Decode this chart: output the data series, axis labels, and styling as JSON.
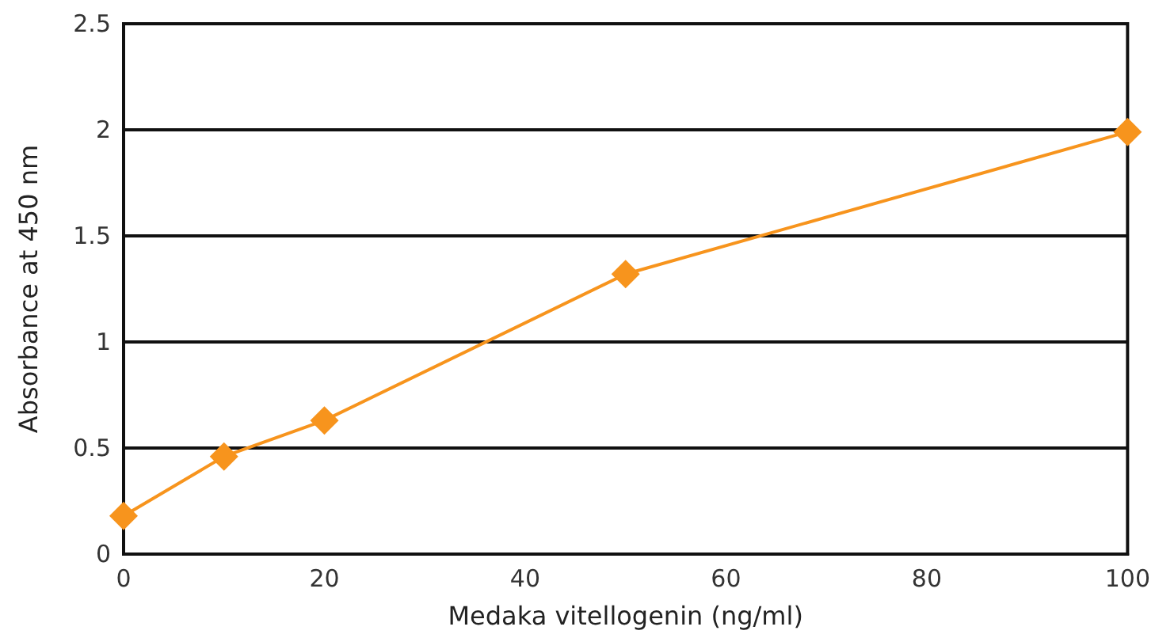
{
  "chart_data": {
    "type": "line",
    "xlabel": "Medaka vitellogenin (ng/ml)",
    "ylabel": "Absorbance at 450 nm",
    "x": [
      0,
      10,
      20,
      50,
      100
    ],
    "series": [
      {
        "color": "#f7941d",
        "values": [
          0.18,
          0.46,
          0.63,
          1.32,
          1.99
        ]
      }
    ],
    "xlim": [
      0,
      100
    ],
    "xticks": [
      0,
      20,
      40,
      60,
      80,
      100
    ],
    "ylim": [
      0,
      2.5
    ],
    "yticks": [
      0,
      0.5,
      1,
      1.5,
      2,
      2.5
    ],
    "grid": "y",
    "marker": "diamond",
    "line_style": "solid"
  }
}
